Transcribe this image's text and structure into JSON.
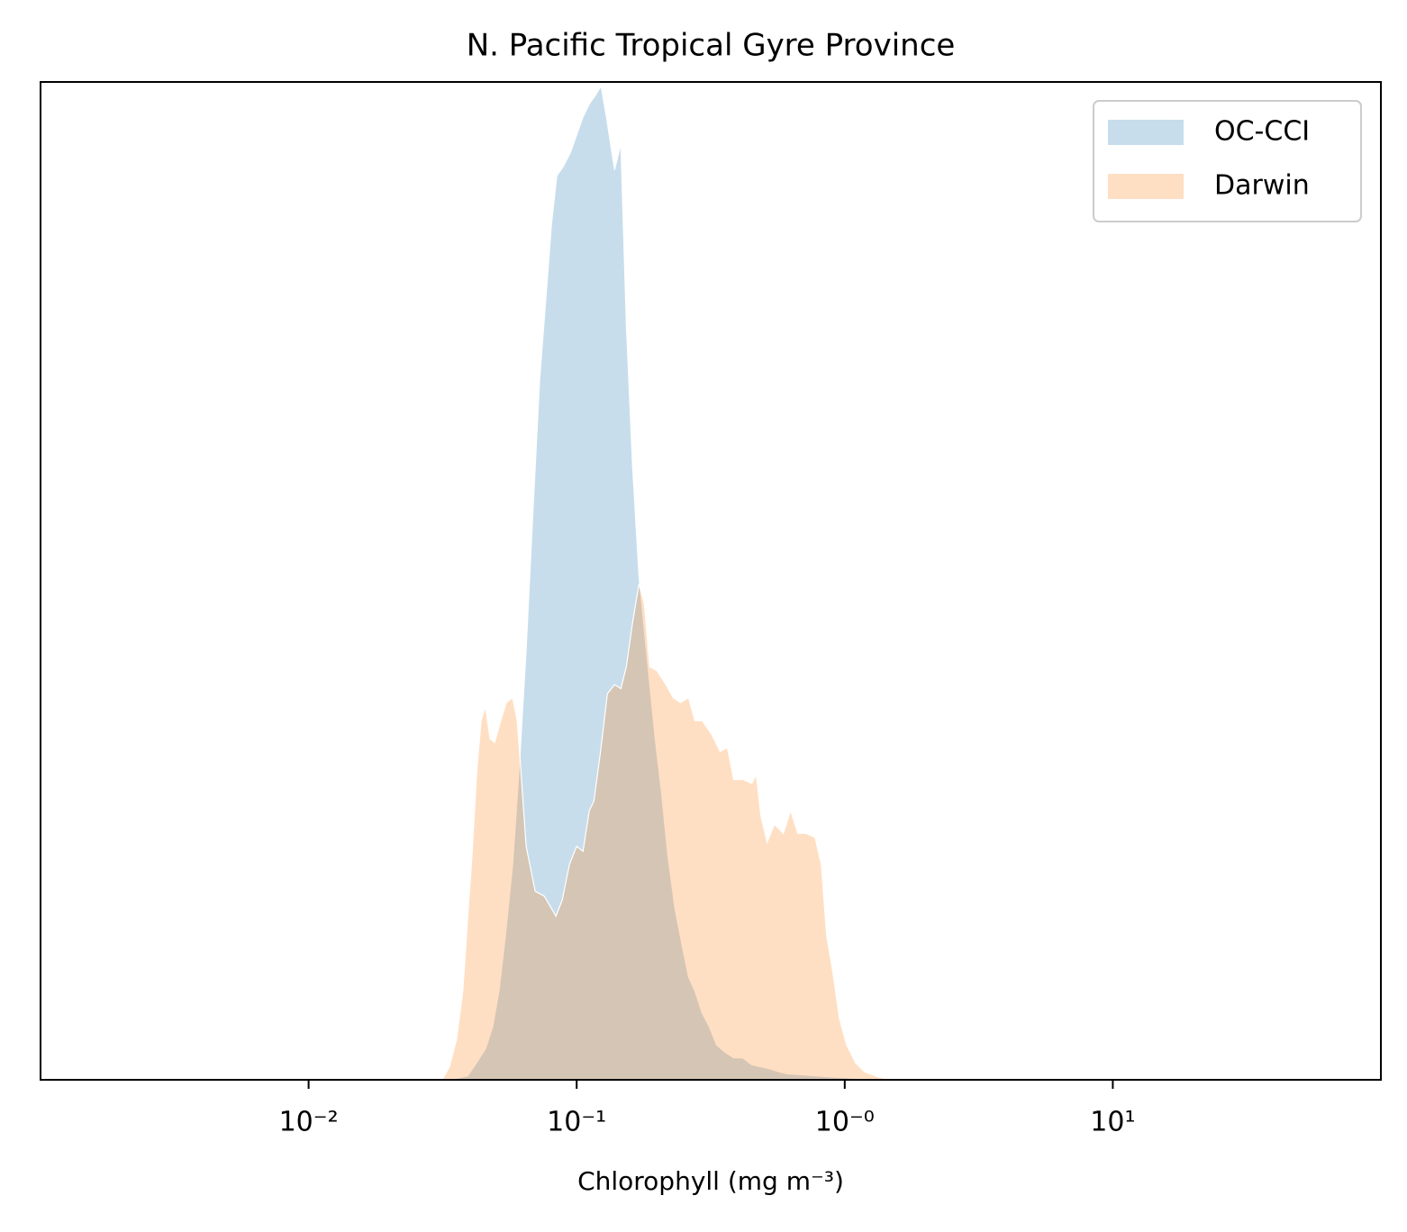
{
  "chart_data": {
    "type": "area",
    "title": "N. Pacific Tropical Gyre Province",
    "xlabel": "Chlorophyll  (mg m⁻³)",
    "xscale": "log",
    "xlim": [
      0.001,
      100
    ],
    "ylim": [
      0,
      1
    ],
    "xticks": [
      {
        "value": 0.01,
        "label": "10⁻²"
      },
      {
        "value": 0.1,
        "label": "10⁻¹"
      },
      {
        "value": 1,
        "label": "10⁻⁰"
      },
      {
        "value": 10,
        "label": "10¹"
      }
    ],
    "legend": "upper right",
    "alpha": 0.25,
    "series": [
      {
        "name": "OC-CCI",
        "color": "#1f77b4",
        "x": [
          0.0335,
          0.0392,
          0.0423,
          0.0457,
          0.0486,
          0.0513,
          0.0542,
          0.0577,
          0.0614,
          0.0648,
          0.0689,
          0.0728,
          0.0768,
          0.0805,
          0.0843,
          0.089,
          0.0947,
          0.1,
          0.1056,
          0.1115,
          0.1177,
          0.1233,
          0.1291,
          0.1385,
          0.1462,
          0.1532,
          0.1618,
          0.1708,
          0.1789,
          0.1874,
          0.1963,
          0.2073,
          0.2188,
          0.2328,
          0.2477,
          0.2615,
          0.2761,
          0.2938,
          0.3126,
          0.3326,
          0.3566,
          0.3853,
          0.4165,
          0.45,
          0.4864,
          0.5255,
          0.5679,
          0.6137,
          0.6893,
          0.7743,
          0.87,
          1.016,
          1.186,
          1.385
        ],
        "values": [
          0,
          0.004,
          0.017,
          0.031,
          0.053,
          0.089,
          0.144,
          0.216,
          0.324,
          0.432,
          0.577,
          0.703,
          0.784,
          0.857,
          0.906,
          0.915,
          0.929,
          0.947,
          0.965,
          0.978,
          0.987,
          0.996,
          0.965,
          0.912,
          0.938,
          0.757,
          0.613,
          0.505,
          0.45,
          0.396,
          0.342,
          0.288,
          0.225,
          0.171,
          0.134,
          0.103,
          0.089,
          0.067,
          0.053,
          0.035,
          0.028,
          0.022,
          0.022,
          0.015,
          0.013,
          0.011,
          0.008,
          0.006,
          0.005,
          0.004,
          0.003,
          0.002,
          0.001,
          0
        ]
      },
      {
        "name": "Darwin",
        "color": "#ff7f0e",
        "x": [
          0.0315,
          0.0335,
          0.0356,
          0.0376,
          0.0392,
          0.0407,
          0.0423,
          0.044,
          0.0457,
          0.0475,
          0.0494,
          0.0521,
          0.0546,
          0.0577,
          0.06,
          0.0614,
          0.0648,
          0.07,
          0.0757,
          0.0837,
          0.0883,
          0.094,
          0.1,
          0.1056,
          0.1115,
          0.1159,
          0.1233,
          0.1302,
          0.1385,
          0.1462,
          0.1532,
          0.1618,
          0.1708,
          0.1789,
          0.1874,
          0.1994,
          0.2154,
          0.2292,
          0.2438,
          0.2615,
          0.2761,
          0.2938,
          0.3175,
          0.3431,
          0.365,
          0.3853,
          0.4165,
          0.45,
          0.4677,
          0.4864,
          0.5134,
          0.5461,
          0.5902,
          0.6281,
          0.6682,
          0.7163,
          0.7743,
          0.8178,
          0.8565,
          0.9042,
          0.9546,
          1.016,
          1.098,
          1.186,
          1.333,
          1.496
        ],
        "values": [
          0,
          0.013,
          0.04,
          0.089,
          0.162,
          0.225,
          0.306,
          0.36,
          0.374,
          0.342,
          0.338,
          0.36,
          0.378,
          0.383,
          0.36,
          0.324,
          0.234,
          0.189,
          0.184,
          0.164,
          0.18,
          0.216,
          0.234,
          0.229,
          0.27,
          0.279,
          0.333,
          0.387,
          0.396,
          0.392,
          0.414,
          0.459,
          0.497,
          0.477,
          0.414,
          0.41,
          0.396,
          0.383,
          0.378,
          0.383,
          0.36,
          0.36,
          0.347,
          0.329,
          0.333,
          0.301,
          0.301,
          0.297,
          0.306,
          0.265,
          0.238,
          0.256,
          0.247,
          0.27,
          0.247,
          0.247,
          0.243,
          0.216,
          0.144,
          0.107,
          0.062,
          0.035,
          0.017,
          0.008,
          0.003,
          0
        ]
      }
    ]
  }
}
